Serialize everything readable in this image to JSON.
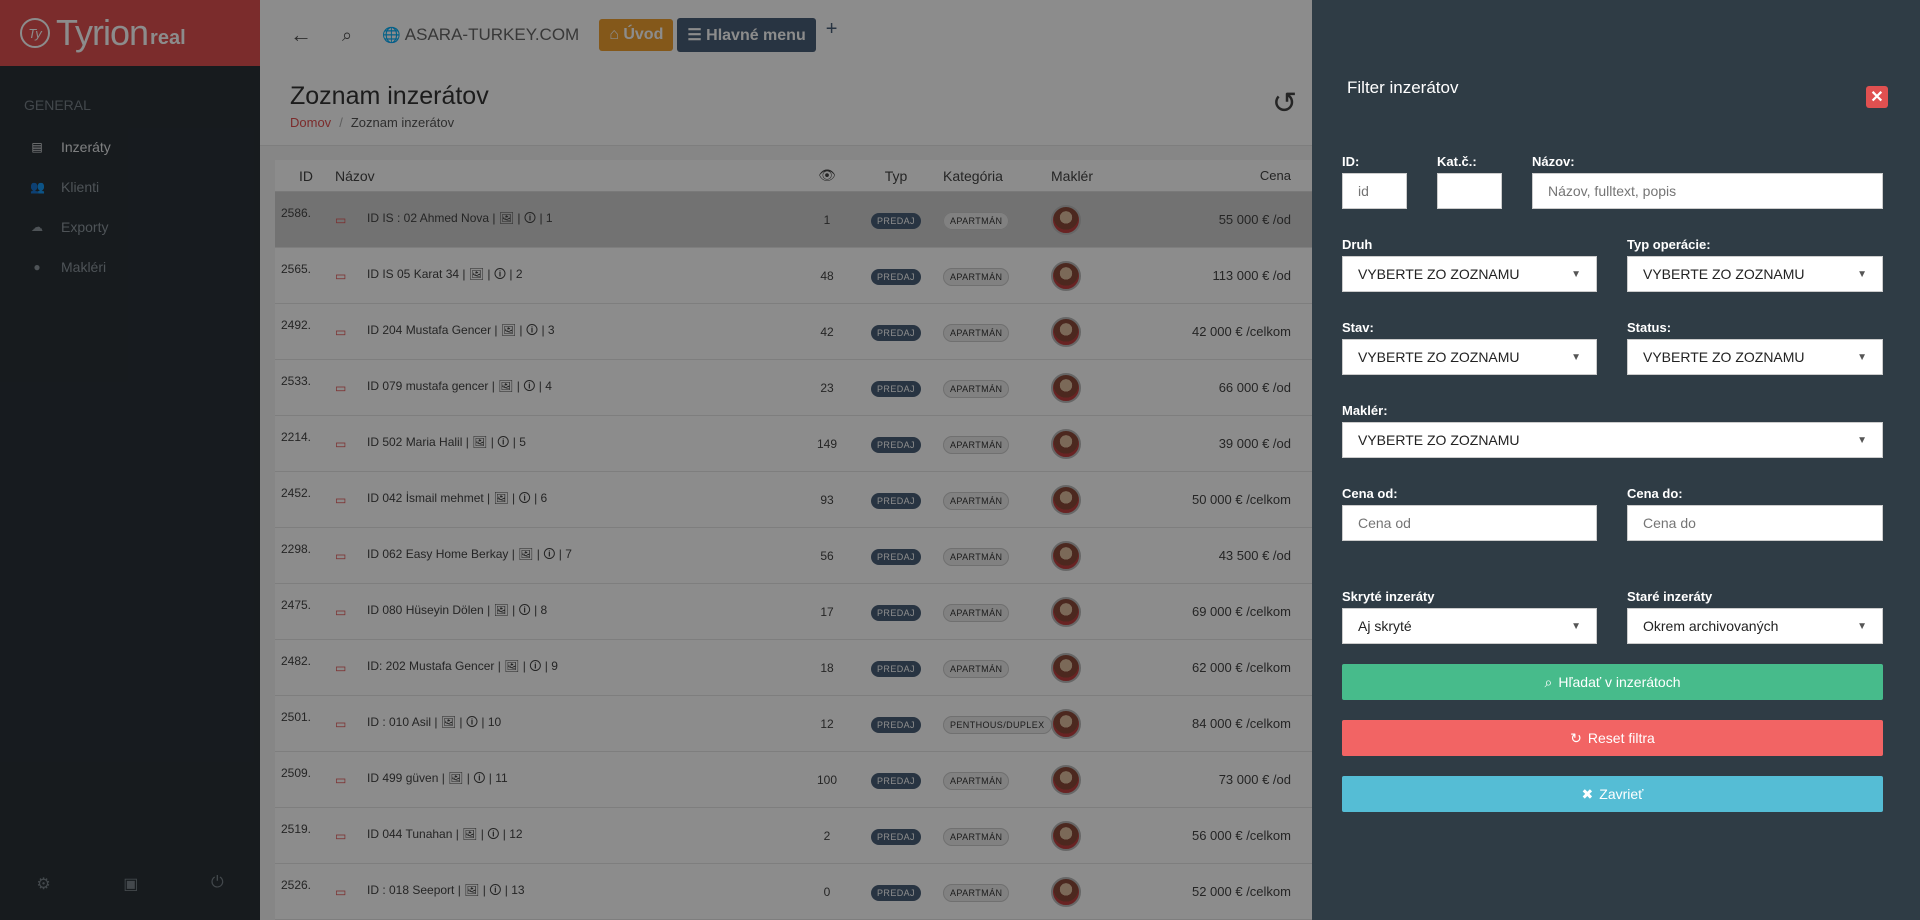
{
  "sidebar": {
    "logo_mark": "Ty",
    "logo_text": "Tyrion",
    "logo_sub": "real",
    "section": "GENERAL",
    "items": [
      {
        "label": "Inzeráty",
        "icon": "document-icon"
      },
      {
        "label": "Klienti",
        "icon": "users-icon"
      },
      {
        "label": "Exporty",
        "icon": "cloud-icon"
      },
      {
        "label": "Makléri",
        "icon": "user-icon"
      }
    ]
  },
  "topbar": {
    "site": "ASARA-TURKEY.COM",
    "home_label": "Úvod",
    "menu_label": "Hlavné menu"
  },
  "page": {
    "title": "Zoznam inzerátov",
    "breadcrumb_home": "Domov",
    "breadcrumb_current": "Zoznam inzerátov"
  },
  "table": {
    "headers": {
      "id": "ID",
      "name": "Názov",
      "views": "👁",
      "typ": "Typ",
      "kat": "Kategória",
      "makler": "Maklér",
      "cena": "Cena"
    },
    "rows": [
      {
        "id": "2586.",
        "name": "ID IS : 02 Ahmed Nova | 🖼 | 🛈 | 1",
        "views": "1",
        "typ": "PREDAJ",
        "kat": "APARTMÁN",
        "cena": "55 000 € /od"
      },
      {
        "id": "2565.",
        "name": "ID IS 05 Karat 34 | 🖼 | 🛈 | 2",
        "views": "48",
        "typ": "PREDAJ",
        "kat": "APARTMÁN",
        "cena": "113 000 € /od"
      },
      {
        "id": "2492.",
        "name": "ID 204 Mustafa Gencer | 🖼 | 🛈 | 3",
        "views": "42",
        "typ": "PREDAJ",
        "kat": "APARTMÁN",
        "cena": "42 000 € /celkom"
      },
      {
        "id": "2533.",
        "name": "ID 079 mustafa gencer | 🖼 | 🛈 | 4",
        "views": "23",
        "typ": "PREDAJ",
        "kat": "APARTMÁN",
        "cena": "66 000 € /od"
      },
      {
        "id": "2214.",
        "name": "ID 502 Maria Halil | 🖼 | 🛈 | 5",
        "views": "149",
        "typ": "PREDAJ",
        "kat": "APARTMÁN",
        "cena": "39 000 € /od"
      },
      {
        "id": "2452.",
        "name": "ID 042 İsmail mehmet | 🖼 | 🛈 | 6",
        "views": "93",
        "typ": "PREDAJ",
        "kat": "APARTMÁN",
        "cena": "50 000 € /celkom"
      },
      {
        "id": "2298.",
        "name": "ID 062 Easy Home Berkay | 🖼 | 🛈 | 7",
        "views": "56",
        "typ": "PREDAJ",
        "kat": "APARTMÁN",
        "cena": "43 500 € /od"
      },
      {
        "id": "2475.",
        "name": "ID 080 Hüseyin Dölen | 🖼 | 🛈 | 8",
        "views": "17",
        "typ": "PREDAJ",
        "kat": "APARTMÁN",
        "cena": "69 000 € /celkom"
      },
      {
        "id": "2482.",
        "name": "ID: 202 Mustafa Gencer | 🖼 | 🛈 | 9",
        "views": "18",
        "typ": "PREDAJ",
        "kat": "APARTMÁN",
        "cena": "62 000 € /celkom"
      },
      {
        "id": "2501.",
        "name": "ID : 010 Asil | 🖼 | 🛈 | 10",
        "views": "12",
        "typ": "PREDAJ",
        "kat": "PENTHOUS/DUPLEX",
        "cena": "84 000 € /celkom"
      },
      {
        "id": "2509.",
        "name": "ID 499 güven | 🖼 | 🛈 | 11",
        "views": "100",
        "typ": "PREDAJ",
        "kat": "APARTMÁN",
        "cena": "73 000 € /od"
      },
      {
        "id": "2519.",
        "name": "ID 044 Tunahan | 🖼 | 🛈 | 12",
        "views": "2",
        "typ": "PREDAJ",
        "kat": "APARTMÁN",
        "cena": "56 000 € /celkom"
      },
      {
        "id": "2526.",
        "name": "ID : 018 Seeport | 🖼 | 🛈 | 13",
        "views": "0",
        "typ": "PREDAJ",
        "kat": "APARTMÁN",
        "cena": "52 000 € /celkom"
      }
    ]
  },
  "filter": {
    "title": "Filter inzerátov",
    "id_label": "ID:",
    "id_placeholder": "id",
    "kat_label": "Kat.č.:",
    "nazov_label": "Názov:",
    "nazov_placeholder": "Názov, fulltext, popis",
    "druh_label": "Druh",
    "druh_value": "VYBERTE ZO ZOZNAMU",
    "typ_label": "Typ operácie:",
    "typ_value": "VYBERTE ZO ZOZNAMU",
    "stav_label": "Stav:",
    "stav_value": "VYBERTE ZO ZOZNAMU",
    "status_label": "Status:",
    "status_value": "VYBERTE ZO ZOZNAMU",
    "makler_label": "Maklér:",
    "makler_value": "VYBERTE ZO ZOZNAMU",
    "cena_od_label": "Cena od:",
    "cena_od_placeholder": "Cena od",
    "cena_do_label": "Cena do:",
    "cena_do_placeholder": "Cena do",
    "skryte_label": "Skryté inzeráty",
    "skryte_value": "Aj skryté",
    "stare_label": "Staré inzeráty",
    "stare_value": "Okrem archivovaných",
    "search_btn": "Hľadať v inzerátoch",
    "reset_btn": "Reset filtra",
    "close_btn": "Zavrieť",
    "colors": {
      "search": "#47bb8b",
      "reset": "#f26464",
      "close": "#55bdd5"
    }
  }
}
